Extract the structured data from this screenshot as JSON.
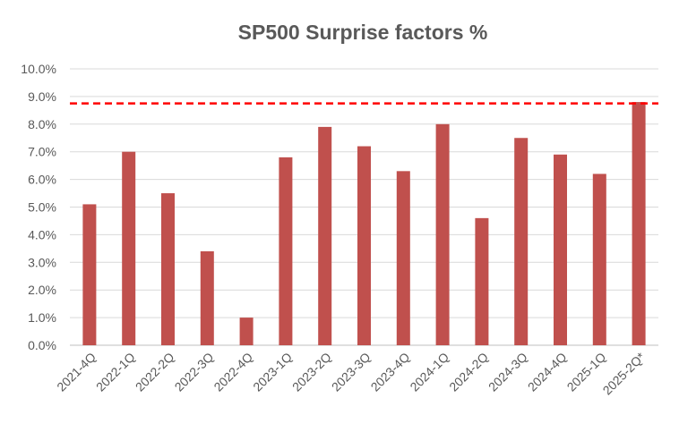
{
  "chart_data": {
    "type": "bar",
    "title": "SP500 Surprise factors %",
    "xlabel": "",
    "ylabel": "",
    "categories": [
      "2021-4Q",
      "2022-1Q",
      "2022-2Q",
      "2022-3Q",
      "2022-4Q",
      "2023-1Q",
      "2023-2Q",
      "2023-3Q",
      "2023-4Q",
      "2024-1Q",
      "2024-2Q",
      "2024-3Q",
      "2024-4Q",
      "2025-1Q",
      "2025-2Q*"
    ],
    "values": [
      5.1,
      7.0,
      5.5,
      3.4,
      1.0,
      6.8,
      7.9,
      7.2,
      6.3,
      8.0,
      4.6,
      7.5,
      6.9,
      6.2,
      8.8
    ],
    "ylim": [
      0,
      10
    ],
    "y_ticks": [
      "0.0%",
      "1.0%",
      "2.0%",
      "3.0%",
      "4.0%",
      "5.0%",
      "6.0%",
      "7.0%",
      "8.0%",
      "9.0%",
      "10.0%"
    ],
    "reference_line": {
      "value": 8.75,
      "style": "dashed",
      "color": "#ff0000"
    },
    "bar_color": "#c0504d",
    "grid": true,
    "legend": "none"
  }
}
